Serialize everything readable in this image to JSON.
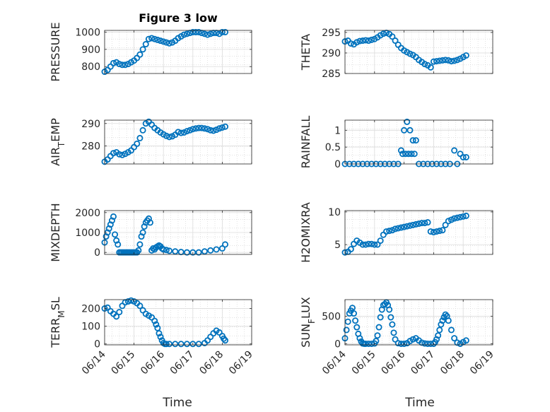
{
  "figure": {
    "title": "Figure 3 low",
    "xlabel": "Time",
    "x_ticks": [
      "06/14",
      "06/15",
      "06/16",
      "06/17",
      "06/18",
      "06/19"
    ]
  },
  "chart_data": [
    {
      "type": "scatter",
      "ylabel": "PRESSURE",
      "ylim": [
        760,
        1010
      ],
      "yticks": [
        800,
        900,
        1000
      ],
      "xlim": [
        0,
        5
      ],
      "grid": true,
      "x": [
        0.0,
        0.1,
        0.2,
        0.3,
        0.4,
        0.5,
        0.6,
        0.7,
        0.8,
        0.9,
        1.0,
        1.1,
        1.2,
        1.3,
        1.4,
        1.5,
        1.6,
        1.7,
        1.8,
        1.9,
        2.0,
        2.1,
        2.2,
        2.3,
        2.4,
        2.5,
        2.6,
        2.7,
        2.8,
        2.9,
        3.0,
        3.1,
        3.2,
        3.3,
        3.4,
        3.5,
        3.6,
        3.7,
        3.8,
        3.9,
        4.0,
        4.1
      ],
      "values": [
        770,
        780,
        800,
        820,
        825,
        815,
        810,
        810,
        815,
        825,
        835,
        850,
        870,
        900,
        930,
        960,
        965,
        960,
        955,
        950,
        945,
        940,
        935,
        940,
        950,
        965,
        975,
        985,
        990,
        995,
        1000,
        1000,
        1000,
        995,
        990,
        985,
        990,
        995,
        995,
        990,
        1000,
        1000
      ]
    },
    {
      "type": "scatter",
      "ylabel": "THETA",
      "ylim": [
        285,
        295.5
      ],
      "yticks": [
        285,
        290,
        295
      ],
      "xlim": [
        0,
        5
      ],
      "grid": true,
      "x": [
        0.0,
        0.1,
        0.2,
        0.3,
        0.4,
        0.5,
        0.6,
        0.7,
        0.8,
        0.9,
        1.0,
        1.1,
        1.2,
        1.3,
        1.4,
        1.5,
        1.6,
        1.7,
        1.8,
        1.9,
        2.0,
        2.1,
        2.2,
        2.3,
        2.4,
        2.5,
        2.6,
        2.7,
        2.8,
        2.9,
        3.0,
        3.1,
        3.2,
        3.3,
        3.4,
        3.5,
        3.6,
        3.7,
        3.8,
        3.9,
        4.0,
        4.1
      ],
      "values": [
        292.8,
        293.0,
        292.3,
        292.1,
        292.6,
        292.9,
        293.0,
        293.1,
        293.0,
        293.2,
        293.4,
        293.8,
        294.3,
        294.7,
        294.9,
        294.6,
        294.0,
        293.0,
        292.0,
        291.2,
        290.6,
        290.2,
        289.8,
        289.5,
        289.0,
        288.3,
        287.8,
        287.3,
        287.0,
        286.5,
        287.9,
        288.0,
        288.1,
        288.2,
        288.3,
        288.2,
        288.0,
        288.1,
        288.3,
        288.6,
        289.0,
        289.4
      ]
    },
    {
      "type": "scatter",
      "ylabel": "AIR_TEMP",
      "ylim": [
        272,
        291.5
      ],
      "yticks": [
        280,
        290
      ],
      "xlim": [
        0,
        5
      ],
      "grid": true,
      "x": [
        0.0,
        0.1,
        0.2,
        0.3,
        0.4,
        0.5,
        0.6,
        0.7,
        0.8,
        0.9,
        1.0,
        1.1,
        1.2,
        1.3,
        1.4,
        1.5,
        1.6,
        1.7,
        1.8,
        1.9,
        2.0,
        2.1,
        2.2,
        2.3,
        2.4,
        2.5,
        2.6,
        2.7,
        2.8,
        2.9,
        3.0,
        3.1,
        3.2,
        3.3,
        3.4,
        3.5,
        3.6,
        3.7,
        3.8,
        3.9,
        4.0,
        4.1
      ],
      "values": [
        273.0,
        274.0,
        275.5,
        276.8,
        277.2,
        276.3,
        276.0,
        276.5,
        277.2,
        278.0,
        279.5,
        281.0,
        283.5,
        287.0,
        290.0,
        290.8,
        289.5,
        288.0,
        287.0,
        286.0,
        285.2,
        284.5,
        284.0,
        284.3,
        285.0,
        286.2,
        285.8,
        286.0,
        286.6,
        287.0,
        287.5,
        287.8,
        288.0,
        288.0,
        287.8,
        287.5,
        287.0,
        286.8,
        287.2,
        287.8,
        288.2,
        288.6
      ]
    },
    {
      "type": "scatter",
      "ylabel": "RAINFALL",
      "ylim": [
        0,
        1.3
      ],
      "yticks": [
        0,
        0.5,
        1
      ],
      "ytick_labels": [
        "0",
        "0.5",
        "1"
      ],
      "xlim": [
        0,
        5
      ],
      "grid": true,
      "x": [
        0.0,
        0.15,
        0.3,
        0.45,
        0.6,
        0.75,
        0.9,
        1.05,
        1.2,
        1.35,
        1.5,
        1.65,
        1.8,
        1.9,
        1.95,
        2.0,
        2.05,
        2.1,
        2.15,
        2.2,
        2.25,
        2.3,
        2.35,
        2.4,
        2.5,
        2.65,
        2.8,
        2.95,
        3.1,
        3.25,
        3.4,
        3.55,
        3.7,
        3.8,
        3.9,
        4.0,
        4.1
      ],
      "values": [
        0,
        0,
        0,
        0,
        0,
        0,
        0,
        0,
        0,
        0,
        0,
        0,
        0,
        0.4,
        0.3,
        1.0,
        0.3,
        1.25,
        0.3,
        1.0,
        0.3,
        0.7,
        0.3,
        0.7,
        0,
        0,
        0,
        0,
        0,
        0,
        0,
        0,
        0.4,
        0,
        0.3,
        0.2,
        0.2
      ]
    },
    {
      "type": "scatter",
      "ylabel": "MIXDEPTH",
      "ylim": [
        -100,
        2100
      ],
      "yticks": [
        0,
        1000,
        2000
      ],
      "xlim": [
        0,
        5
      ],
      "grid": true,
      "x": [
        0.0,
        0.05,
        0.1,
        0.15,
        0.2,
        0.25,
        0.3,
        0.35,
        0.4,
        0.45,
        0.5,
        0.55,
        0.6,
        0.65,
        0.7,
        0.75,
        0.8,
        0.85,
        0.9,
        0.95,
        1.0,
        1.05,
        1.1,
        1.15,
        1.2,
        1.25,
        1.3,
        1.35,
        1.4,
        1.45,
        1.5,
        1.55,
        1.6,
        1.65,
        1.7,
        1.75,
        1.8,
        1.85,
        1.9,
        1.95,
        2.0,
        2.1,
        2.2,
        2.4,
        2.6,
        2.8,
        3.0,
        3.2,
        3.4,
        3.6,
        3.8,
        4.0,
        4.1
      ],
      "values": [
        500,
        800,
        1000,
        1200,
        1400,
        1600,
        1800,
        900,
        600,
        400,
        0,
        0,
        0,
        0,
        0,
        0,
        0,
        0,
        0,
        0,
        0,
        0,
        0,
        100,
        400,
        800,
        1000,
        1300,
        1500,
        1600,
        1700,
        1500,
        100,
        200,
        150,
        250,
        300,
        350,
        300,
        200,
        150,
        120,
        80,
        50,
        20,
        0,
        0,
        0,
        50,
        100,
        150,
        200,
        400
      ]
    },
    {
      "type": "scatter",
      "ylabel": "H2OMIXRA",
      "ylim": [
        3.5,
        10.2
      ],
      "yticks": [
        5,
        10
      ],
      "xlim": [
        0,
        5
      ],
      "grid": true,
      "x": [
        0.0,
        0.1,
        0.2,
        0.3,
        0.4,
        0.5,
        0.6,
        0.7,
        0.8,
        0.9,
        1.0,
        1.1,
        1.2,
        1.3,
        1.4,
        1.5,
        1.6,
        1.7,
        1.8,
        1.9,
        2.0,
        2.1,
        2.2,
        2.3,
        2.4,
        2.5,
        2.6,
        2.7,
        2.8,
        2.9,
        3.0,
        3.1,
        3.2,
        3.3,
        3.4,
        3.5,
        3.6,
        3.7,
        3.8,
        3.9,
        4.0,
        4.1
      ],
      "values": [
        3.8,
        3.9,
        4.3,
        5.1,
        5.6,
        5.3,
        5.0,
        5.0,
        5.1,
        5.1,
        5.0,
        5.0,
        5.6,
        6.5,
        7.0,
        7.1,
        7.2,
        7.4,
        7.5,
        7.6,
        7.7,
        7.8,
        7.9,
        8.0,
        8.1,
        8.2,
        8.3,
        8.3,
        8.4,
        7.0,
        6.9,
        7.0,
        7.1,
        7.2,
        8.0,
        8.6,
        8.8,
        9.0,
        9.1,
        9.2,
        9.3,
        9.4
      ]
    },
    {
      "type": "scatter",
      "ylabel": "TERR_MSL",
      "ylim": [
        -5,
        250
      ],
      "yticks": [
        0,
        100,
        200
      ],
      "xlim": [
        0,
        5
      ],
      "grid": true,
      "x": [
        0.0,
        0.1,
        0.2,
        0.3,
        0.4,
        0.5,
        0.6,
        0.7,
        0.8,
        0.9,
        1.0,
        1.1,
        1.2,
        1.3,
        1.4,
        1.5,
        1.6,
        1.7,
        1.75,
        1.8,
        1.85,
        1.9,
        1.95,
        2.0,
        2.05,
        2.1,
        2.2,
        2.4,
        2.6,
        2.8,
        3.0,
        3.2,
        3.4,
        3.5,
        3.6,
        3.7,
        3.8,
        3.9,
        4.0,
        4.05,
        4.1
      ],
      "values": [
        200,
        205,
        185,
        170,
        155,
        180,
        215,
        235,
        240,
        245,
        240,
        230,
        215,
        190,
        170,
        160,
        150,
        130,
        110,
        90,
        60,
        40,
        20,
        5,
        0,
        0,
        0,
        0,
        0,
        0,
        0,
        0,
        5,
        20,
        40,
        60,
        75,
        65,
        45,
        30,
        20
      ]
    },
    {
      "type": "scatter",
      "ylabel": "SUN_FLUX",
      "ylim": [
        -20,
        800
      ],
      "yticks": [
        0,
        500
      ],
      "xlim": [
        0,
        5
      ],
      "grid": true,
      "x": [
        0.0,
        0.05,
        0.1,
        0.15,
        0.2,
        0.25,
        0.3,
        0.35,
        0.4,
        0.45,
        0.5,
        0.55,
        0.6,
        0.65,
        0.7,
        0.8,
        0.9,
        1.0,
        1.05,
        1.1,
        1.15,
        1.2,
        1.25,
        1.3,
        1.35,
        1.4,
        1.45,
        1.5,
        1.55,
        1.6,
        1.65,
        1.7,
        1.8,
        1.9,
        2.0,
        2.1,
        2.2,
        2.3,
        2.4,
        2.5,
        2.6,
        2.7,
        2.8,
        2.9,
        3.0,
        3.05,
        3.1,
        3.15,
        3.2,
        3.25,
        3.3,
        3.35,
        3.4,
        3.45,
        3.5,
        3.6,
        3.7,
        3.8,
        3.9,
        4.0,
        4.1
      ],
      "values": [
        100,
        250,
        400,
        550,
        600,
        650,
        550,
        420,
        300,
        180,
        100,
        40,
        5,
        0,
        0,
        0,
        0,
        5,
        50,
        150,
        300,
        480,
        620,
        700,
        720,
        750,
        700,
        620,
        480,
        350,
        200,
        80,
        10,
        0,
        0,
        10,
        50,
        80,
        100,
        60,
        20,
        5,
        0,
        0,
        0,
        30,
        80,
        150,
        250,
        350,
        420,
        480,
        530,
        500,
        420,
        250,
        100,
        20,
        0,
        30,
        60
      ]
    }
  ]
}
